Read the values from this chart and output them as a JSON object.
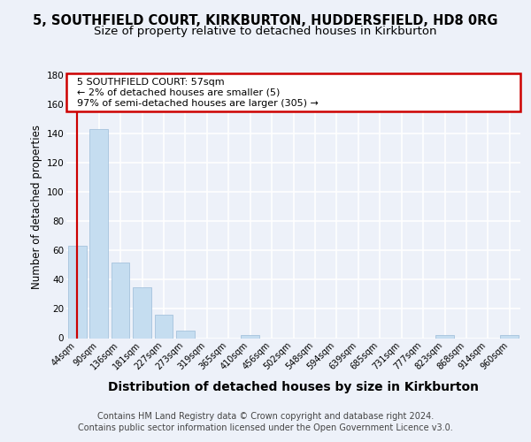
{
  "title": "5, SOUTHFIELD COURT, KIRKBURTON, HUDDERSFIELD, HD8 0RG",
  "subtitle": "Size of property relative to detached houses in Kirkburton",
  "xlabel": "Distribution of detached houses by size in Kirkburton",
  "ylabel": "Number of detached properties",
  "categories": [
    "44sqm",
    "90sqm",
    "136sqm",
    "181sqm",
    "227sqm",
    "273sqm",
    "319sqm",
    "365sqm",
    "410sqm",
    "456sqm",
    "502sqm",
    "548sqm",
    "594sqm",
    "639sqm",
    "685sqm",
    "731sqm",
    "777sqm",
    "823sqm",
    "868sqm",
    "914sqm",
    "960sqm"
  ],
  "values": [
    63,
    143,
    52,
    35,
    16,
    5,
    0,
    0,
    2,
    0,
    0,
    0,
    0,
    0,
    0,
    0,
    0,
    2,
    0,
    0,
    2
  ],
  "bar_color": "#c5ddf0",
  "bar_edge_color": "#9bbbd8",
  "highlight_index": 0,
  "highlight_color": "#cc0000",
  "annotation_line1": "5 SOUTHFIELD COURT: 57sqm",
  "annotation_line2": "← 2% of detached houses are smaller (5)",
  "annotation_line3": "97% of semi-detached houses are larger (305) →",
  "ylim": [
    0,
    180
  ],
  "yticks": [
    0,
    20,
    40,
    60,
    80,
    100,
    120,
    140,
    160,
    180
  ],
  "footer_line1": "Contains HM Land Registry data © Crown copyright and database right 2024.",
  "footer_line2": "Contains public sector information licensed under the Open Government Licence v3.0.",
  "background_color": "#edf1f9",
  "grid_color": "#ffffff",
  "title_fontsize": 10.5,
  "subtitle_fontsize": 9.5,
  "xlabel_fontsize": 10,
  "ylabel_fontsize": 8.5,
  "tick_fontsize": 7,
  "footer_fontsize": 7,
  "ann_fontsize": 8
}
